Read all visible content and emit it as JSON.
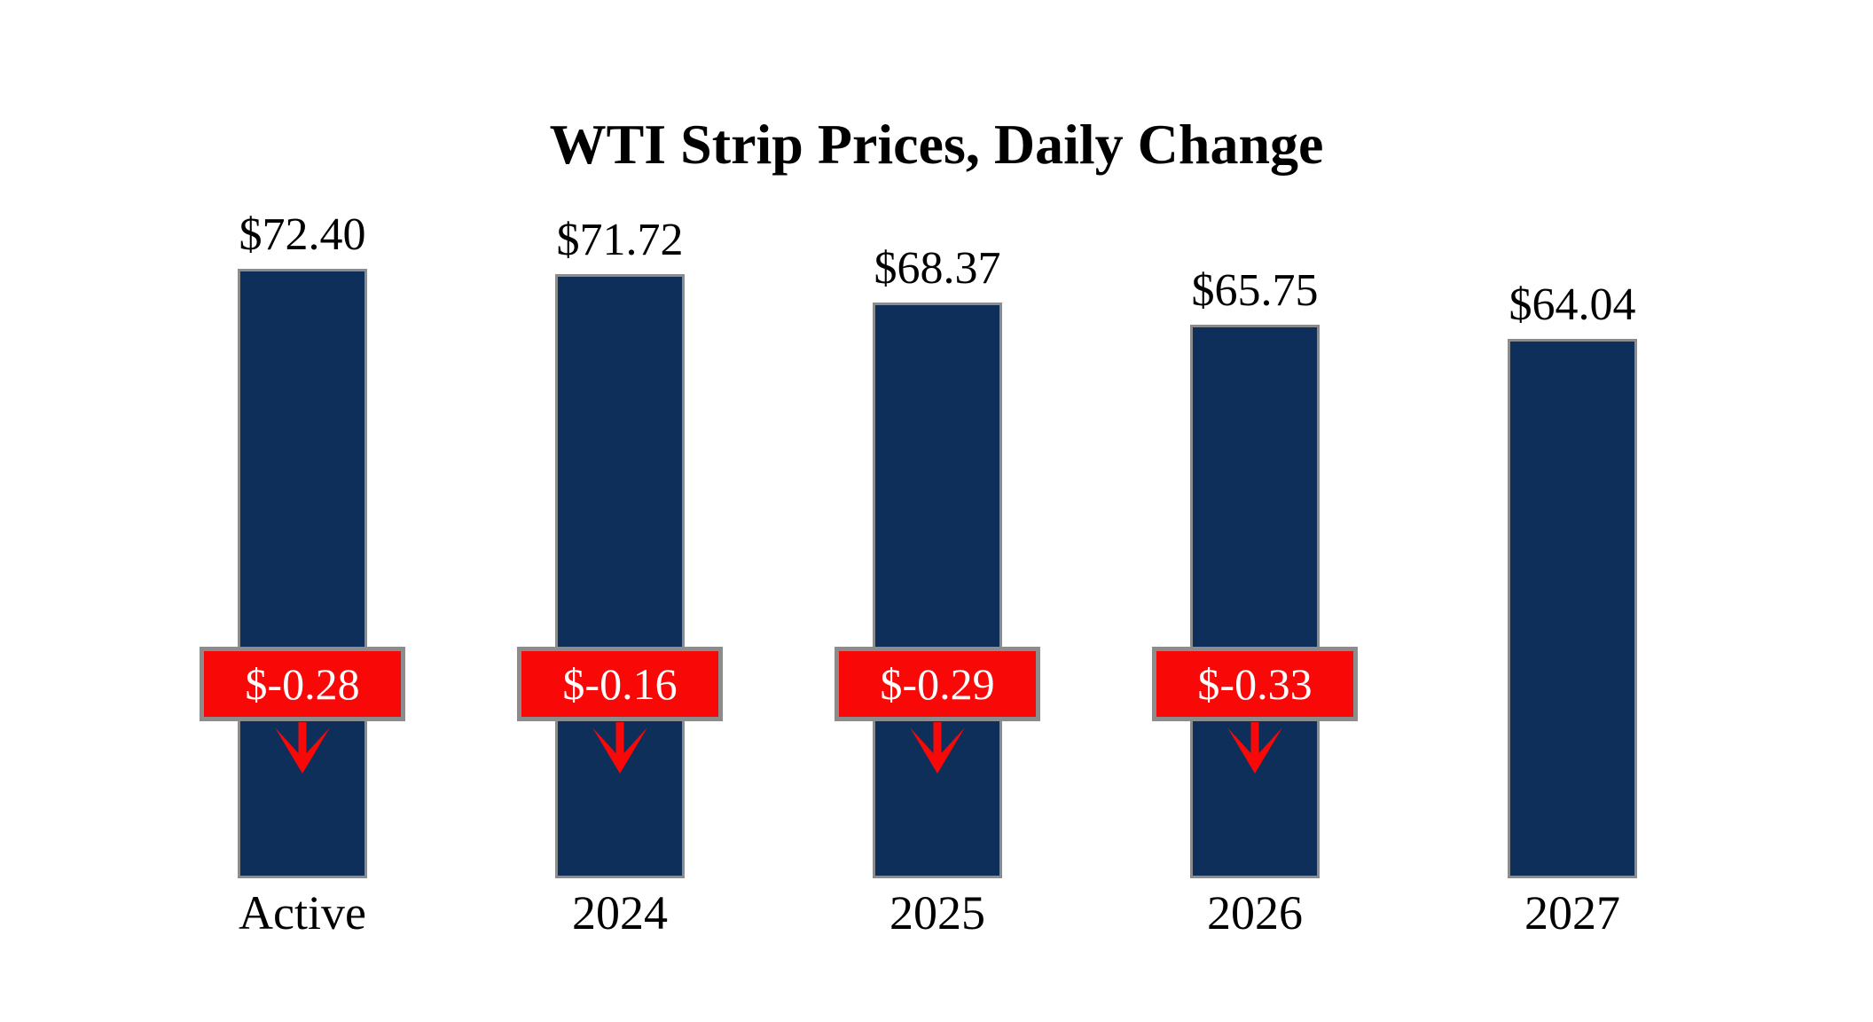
{
  "title": "WTI Strip Prices, Daily Change",
  "chart_data": {
    "type": "bar",
    "title": "WTI Strip Prices, Daily Change",
    "categories": [
      "Active",
      "2024",
      "2025",
      "2026",
      "2027"
    ],
    "series": [
      {
        "name": "WTI strip price ($)",
        "values": [
          72.4,
          71.72,
          68.37,
          65.75,
          64.04
        ]
      },
      {
        "name": "Daily change ($)",
        "values": [
          -0.28,
          -0.16,
          -0.29,
          -0.33,
          null
        ]
      }
    ],
    "value_labels": [
      "$72.40",
      "$71.72",
      "$68.37",
      "$65.75",
      "$64.04"
    ],
    "change_labels": [
      "$-0.28",
      "$-0.16",
      "$-0.29",
      "$-0.33",
      null
    ],
    "ylim": [
      0,
      72.4
    ],
    "grid": false,
    "legend": "none",
    "axes_visible": false,
    "colors": {
      "background": "#FFFFFF",
      "bar_fill": "#0D2F5A",
      "bar_border": "#8C8C8C",
      "badge_fill": "#F90808",
      "badge_border": "#8C8C8C",
      "badge_text": "#FFFFFF",
      "arrow": "#F90808",
      "label_text": "#000000"
    }
  }
}
